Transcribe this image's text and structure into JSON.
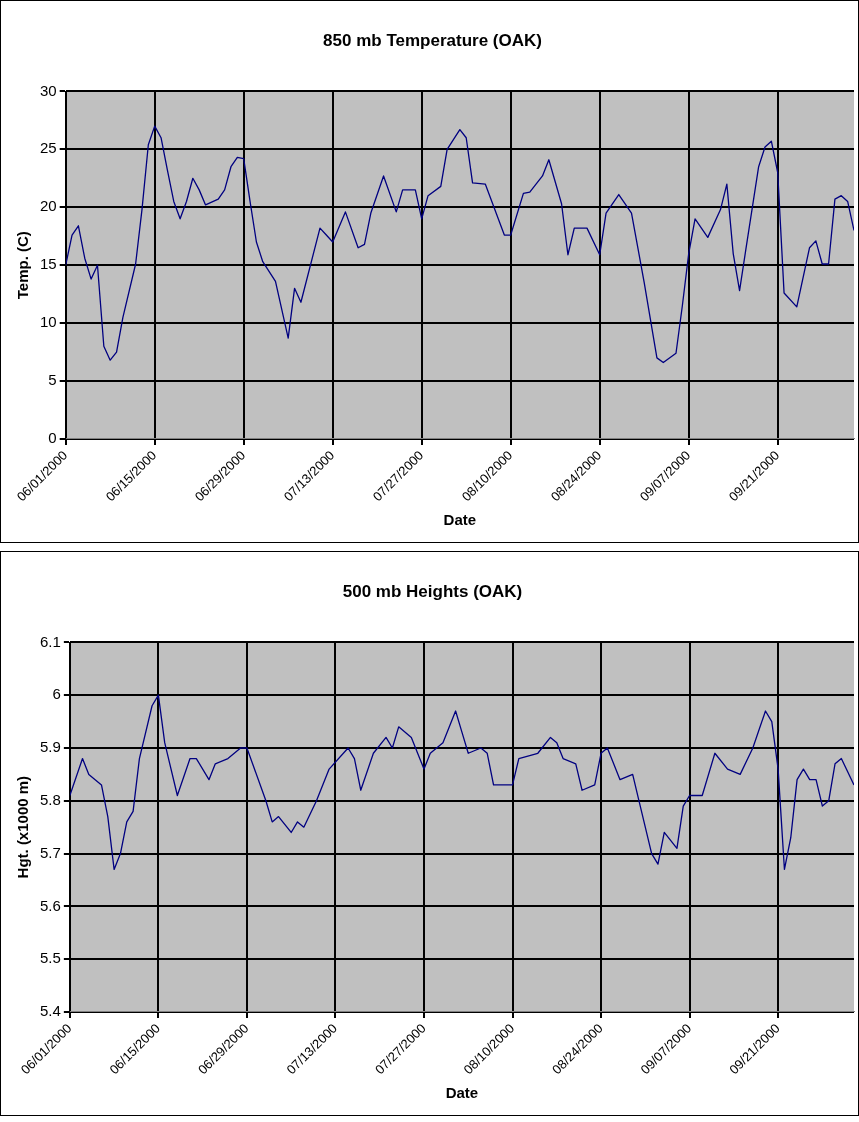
{
  "chart_data": [
    {
      "type": "line",
      "title": "850 mb Temperature (OAK)",
      "xlabel": "Date",
      "ylabel": "Temp. (C)",
      "grid": true,
      "legend": false,
      "marker": "none",
      "xlim": [
        "2000-06-01",
        "2000-10-03"
      ],
      "xticks": [
        {
          "value": "2000-06-01",
          "label": "06/01/2000"
        },
        {
          "value": "2000-06-15",
          "label": "06/15/2000"
        },
        {
          "value": "2000-06-29",
          "label": "06/29/2000"
        },
        {
          "value": "2000-07-13",
          "label": "07/13/2000"
        },
        {
          "value": "2000-07-27",
          "label": "07/27/2000"
        },
        {
          "value": "2000-08-10",
          "label": "08/10/2000"
        },
        {
          "value": "2000-08-24",
          "label": "08/24/2000"
        },
        {
          "value": "2000-09-07",
          "label": "09/07/2000"
        },
        {
          "value": "2000-09-21",
          "label": "09/21/2000"
        }
      ],
      "ylim": [
        0,
        30
      ],
      "yticks": [
        0,
        5,
        10,
        15,
        20,
        25,
        30
      ],
      "series": [
        {
          "color": "#000080",
          "x": [
            "2000-06-01",
            "2000-06-02",
            "2000-06-03",
            "2000-06-04",
            "2000-06-05",
            "2000-06-06",
            "2000-06-07",
            "2000-06-08",
            "2000-06-09",
            "2000-06-10",
            "2000-06-12",
            "2000-06-13",
            "2000-06-14",
            "2000-06-15",
            "2000-06-16",
            "2000-06-17",
            "2000-06-18",
            "2000-06-19",
            "2000-06-20",
            "2000-06-21",
            "2000-06-22",
            "2000-06-23",
            "2000-06-25",
            "2000-06-26",
            "2000-06-27",
            "2000-06-28",
            "2000-06-29",
            "2000-06-30",
            "2000-07-01",
            "2000-07-02",
            "2000-07-04",
            "2000-07-06",
            "2000-07-07",
            "2000-07-08",
            "2000-07-11",
            "2000-07-12",
            "2000-07-13",
            "2000-07-15",
            "2000-07-17",
            "2000-07-18",
            "2000-07-19",
            "2000-07-21",
            "2000-07-23",
            "2000-07-24",
            "2000-07-26",
            "2000-07-27",
            "2000-07-28",
            "2000-07-30",
            "2000-07-31",
            "2000-08-02",
            "2000-08-03",
            "2000-08-04",
            "2000-08-06",
            "2000-08-09",
            "2000-08-10",
            "2000-08-12",
            "2000-08-13",
            "2000-08-15",
            "2000-08-16",
            "2000-08-18",
            "2000-08-19",
            "2000-08-20",
            "2000-08-22",
            "2000-08-24",
            "2000-08-25",
            "2000-08-27",
            "2000-08-29",
            "2000-08-31",
            "2000-09-02",
            "2000-09-03",
            "2000-09-05",
            "2000-09-06",
            "2000-09-07",
            "2000-09-08",
            "2000-09-10",
            "2000-09-12",
            "2000-09-13",
            "2000-09-14",
            "2000-09-15",
            "2000-09-16",
            "2000-09-18",
            "2000-09-19",
            "2000-09-20",
            "2000-09-21",
            "2000-09-22",
            "2000-09-24",
            "2000-09-26",
            "2000-09-27",
            "2000-09-28",
            "2000-09-29",
            "2000-09-30",
            "2000-10-01",
            "2000-10-02",
            "2000-10-03"
          ],
          "values": [
            15,
            17.6,
            18.4,
            15.6,
            13.8,
            15,
            8,
            6.8,
            7.5,
            10.5,
            15.1,
            19.8,
            25.4,
            27,
            26,
            23.2,
            20.5,
            19,
            20.5,
            22.5,
            21.5,
            20.2,
            20.7,
            21.5,
            23.5,
            24.3,
            24.2,
            20.5,
            17,
            15.3,
            13.6,
            8.7,
            13,
            11.8,
            18.2,
            17.6,
            17,
            19.6,
            16.5,
            16.8,
            19.5,
            22.7,
            19.6,
            21.5,
            21.5,
            19,
            21,
            21.8,
            25,
            26.7,
            26,
            22.1,
            22,
            17.6,
            17.6,
            21.2,
            21.3,
            22.7,
            24.1,
            20.3,
            15.9,
            18.2,
            18.2,
            15.9,
            19.5,
            21.1,
            19.5,
            13.5,
            7,
            6.6,
            7.4,
            11.5,
            16,
            19,
            17.4,
            19.8,
            22,
            16,
            12.8,
            16.4,
            23.5,
            25.2,
            25.7,
            23,
            12.6,
            11.4,
            16.5,
            17.1,
            15.1,
            15.1,
            20.7,
            21,
            20.5,
            18
          ]
        }
      ]
    },
    {
      "type": "line",
      "title": "500 mb Heights (OAK)",
      "xlabel": "Date",
      "ylabel": "Hgt. (x1000 m)",
      "grid": true,
      "legend": false,
      "marker": "none",
      "xlim": [
        "2000-06-01",
        "2000-10-03"
      ],
      "xticks": [
        {
          "value": "2000-06-01",
          "label": "06/01/2000"
        },
        {
          "value": "2000-06-15",
          "label": "06/15/2000"
        },
        {
          "value": "2000-06-29",
          "label": "06/29/2000"
        },
        {
          "value": "2000-07-13",
          "label": "07/13/2000"
        },
        {
          "value": "2000-07-27",
          "label": "07/27/2000"
        },
        {
          "value": "2000-08-10",
          "label": "08/10/2000"
        },
        {
          "value": "2000-08-24",
          "label": "08/24/2000"
        },
        {
          "value": "2000-09-07",
          "label": "09/07/2000"
        },
        {
          "value": "2000-09-21",
          "label": "09/21/2000"
        }
      ],
      "ylim": [
        5.4,
        6.1
      ],
      "yticks": [
        5.4,
        5.5,
        5.6,
        5.7,
        5.8,
        5.9,
        6,
        6.1
      ],
      "series": [
        {
          "color": "#000080",
          "x": [
            "2000-06-01",
            "2000-06-03",
            "2000-06-04",
            "2000-06-05",
            "2000-06-06",
            "2000-06-07",
            "2000-06-08",
            "2000-06-09",
            "2000-06-10",
            "2000-06-11",
            "2000-06-12",
            "2000-06-14",
            "2000-06-15",
            "2000-06-16",
            "2000-06-18",
            "2000-06-20",
            "2000-06-21",
            "2000-06-23",
            "2000-06-24",
            "2000-06-26",
            "2000-06-28",
            "2000-06-29",
            "2000-07-02",
            "2000-07-03",
            "2000-07-04",
            "2000-07-06",
            "2000-07-07",
            "2000-07-08",
            "2000-07-10",
            "2000-07-12",
            "2000-07-15",
            "2000-07-16",
            "2000-07-17",
            "2000-07-19",
            "2000-07-21",
            "2000-07-22",
            "2000-07-23",
            "2000-07-25",
            "2000-07-27",
            "2000-07-28",
            "2000-07-30",
            "2000-08-01",
            "2000-08-02",
            "2000-08-03",
            "2000-08-05",
            "2000-08-06",
            "2000-08-07",
            "2000-08-10",
            "2000-08-11",
            "2000-08-14",
            "2000-08-16",
            "2000-08-17",
            "2000-08-18",
            "2000-08-20",
            "2000-08-21",
            "2000-08-23",
            "2000-08-24",
            "2000-08-25",
            "2000-08-27",
            "2000-08-29",
            "2000-08-30",
            "2000-09-01",
            "2000-09-02",
            "2000-09-03",
            "2000-09-05",
            "2000-09-06",
            "2000-09-07",
            "2000-09-09",
            "2000-09-11",
            "2000-09-13",
            "2000-09-15",
            "2000-09-17",
            "2000-09-19",
            "2000-09-20",
            "2000-09-21",
            "2000-09-22",
            "2000-09-23",
            "2000-09-24",
            "2000-09-25",
            "2000-09-26",
            "2000-09-27",
            "2000-09-28",
            "2000-09-29",
            "2000-09-30",
            "2000-10-01",
            "2000-10-03"
          ],
          "values": [
            5.81,
            5.88,
            5.85,
            5.84,
            5.83,
            5.77,
            5.67,
            5.7,
            5.76,
            5.78,
            5.88,
            5.98,
            6,
            5.91,
            5.81,
            5.88,
            5.88,
            5.84,
            5.87,
            5.88,
            5.9,
            5.9,
            5.8,
            5.76,
            5.77,
            5.74,
            5.76,
            5.75,
            5.8,
            5.86,
            5.9,
            5.88,
            5.82,
            5.89,
            5.92,
            5.9,
            5.94,
            5.92,
            5.86,
            5.89,
            5.91,
            5.97,
            5.93,
            5.89,
            5.9,
            5.89,
            5.83,
            5.83,
            5.88,
            5.89,
            5.92,
            5.91,
            5.88,
            5.87,
            5.82,
            5.83,
            5.89,
            5.9,
            5.84,
            5.85,
            5.8,
            5.7,
            5.68,
            5.74,
            5.71,
            5.79,
            5.81,
            5.81,
            5.89,
            5.86,
            5.85,
            5.9,
            5.97,
            5.95,
            5.86,
            5.67,
            5.73,
            5.84,
            5.86,
            5.84,
            5.84,
            5.79,
            5.8,
            5.87,
            5.88,
            5.83
          ]
        }
      ]
    }
  ]
}
